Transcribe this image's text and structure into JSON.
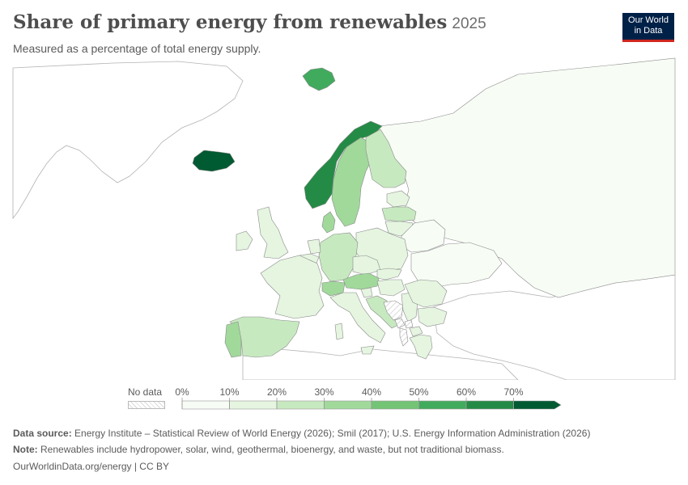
{
  "header": {
    "title": "Share of primary energy from renewables",
    "year": "2025",
    "subtitle": "Measured as a percentage of total energy supply."
  },
  "logo": {
    "line1": "Our World",
    "line2": "in Data"
  },
  "legend": {
    "no_data_label": "No data",
    "ticks": [
      "0%",
      "10%",
      "20%",
      "30%",
      "40%",
      "50%",
      "60%",
      "70%"
    ],
    "colors": [
      "#f7fcf5",
      "#e5f5e0",
      "#c7e9c0",
      "#a1d99b",
      "#74c476",
      "#41ab5d",
      "#238b45",
      "#005a32"
    ],
    "no_data_color": "#dcdcdc"
  },
  "map_data": {
    "indicator": "Share of primary energy from renewables",
    "unit": "%",
    "countries": [
      {
        "id": "iceland",
        "value": 82
      },
      {
        "id": "norway",
        "value": 63
      },
      {
        "id": "svalbard",
        "value": 55
      },
      {
        "id": "sweden",
        "value": 38
      },
      {
        "id": "finland",
        "value": 27
      },
      {
        "id": "denmark",
        "value": 37
      },
      {
        "id": "austria",
        "value": 35
      },
      {
        "id": "switzerland",
        "value": 33
      },
      {
        "id": "portugal",
        "value": 30
      },
      {
        "id": "latvia",
        "value": 24
      },
      {
        "id": "estonia",
        "value": 17
      },
      {
        "id": "lithuania",
        "value": 14
      },
      {
        "id": "spain",
        "value": 22
      },
      {
        "id": "italy",
        "value": 19
      },
      {
        "id": "germany",
        "value": 20
      },
      {
        "id": "uk",
        "value": 18
      },
      {
        "id": "ireland",
        "value": 14
      },
      {
        "id": "france",
        "value": 14
      },
      {
        "id": "croatia",
        "value": 21
      },
      {
        "id": "slovenia",
        "value": 17
      },
      {
        "id": "romania",
        "value": 18
      },
      {
        "id": "greece",
        "value": 19
      },
      {
        "id": "netherlands",
        "value": 13
      },
      {
        "id": "belgium",
        "value": 10
      },
      {
        "id": "czechia",
        "value": 11
      },
      {
        "id": "slovakia",
        "value": 11
      },
      {
        "id": "poland",
        "value": 11
      },
      {
        "id": "hungary",
        "value": 10
      },
      {
        "id": "bulgaria",
        "value": 12
      },
      {
        "id": "north_macedonia",
        "value": 13
      },
      {
        "id": "belarus",
        "value": 2
      },
      {
        "id": "ukraine",
        "value": 6
      },
      {
        "id": "russia",
        "value": 6
      },
      {
        "id": "serbia",
        "value": 12
      },
      {
        "id": "bosnia",
        "value": null
      },
      {
        "id": "montenegro",
        "value": null
      },
      {
        "id": "kosovo",
        "value": null
      },
      {
        "id": "albania",
        "value": null
      }
    ]
  },
  "footer": {
    "source_label": "Data source:",
    "source_text": "Energy Institute – Statistical Review of World Energy (2026); Smil (2017); U.S. Energy Information Administration (2026)",
    "note_label": "Note:",
    "note_text": "Renewables include hydropower, solar, wind, geothermal, bioenergy, and waste, but not traditional biomass.",
    "credit": "OurWorldinData.org/energy | CC BY"
  }
}
